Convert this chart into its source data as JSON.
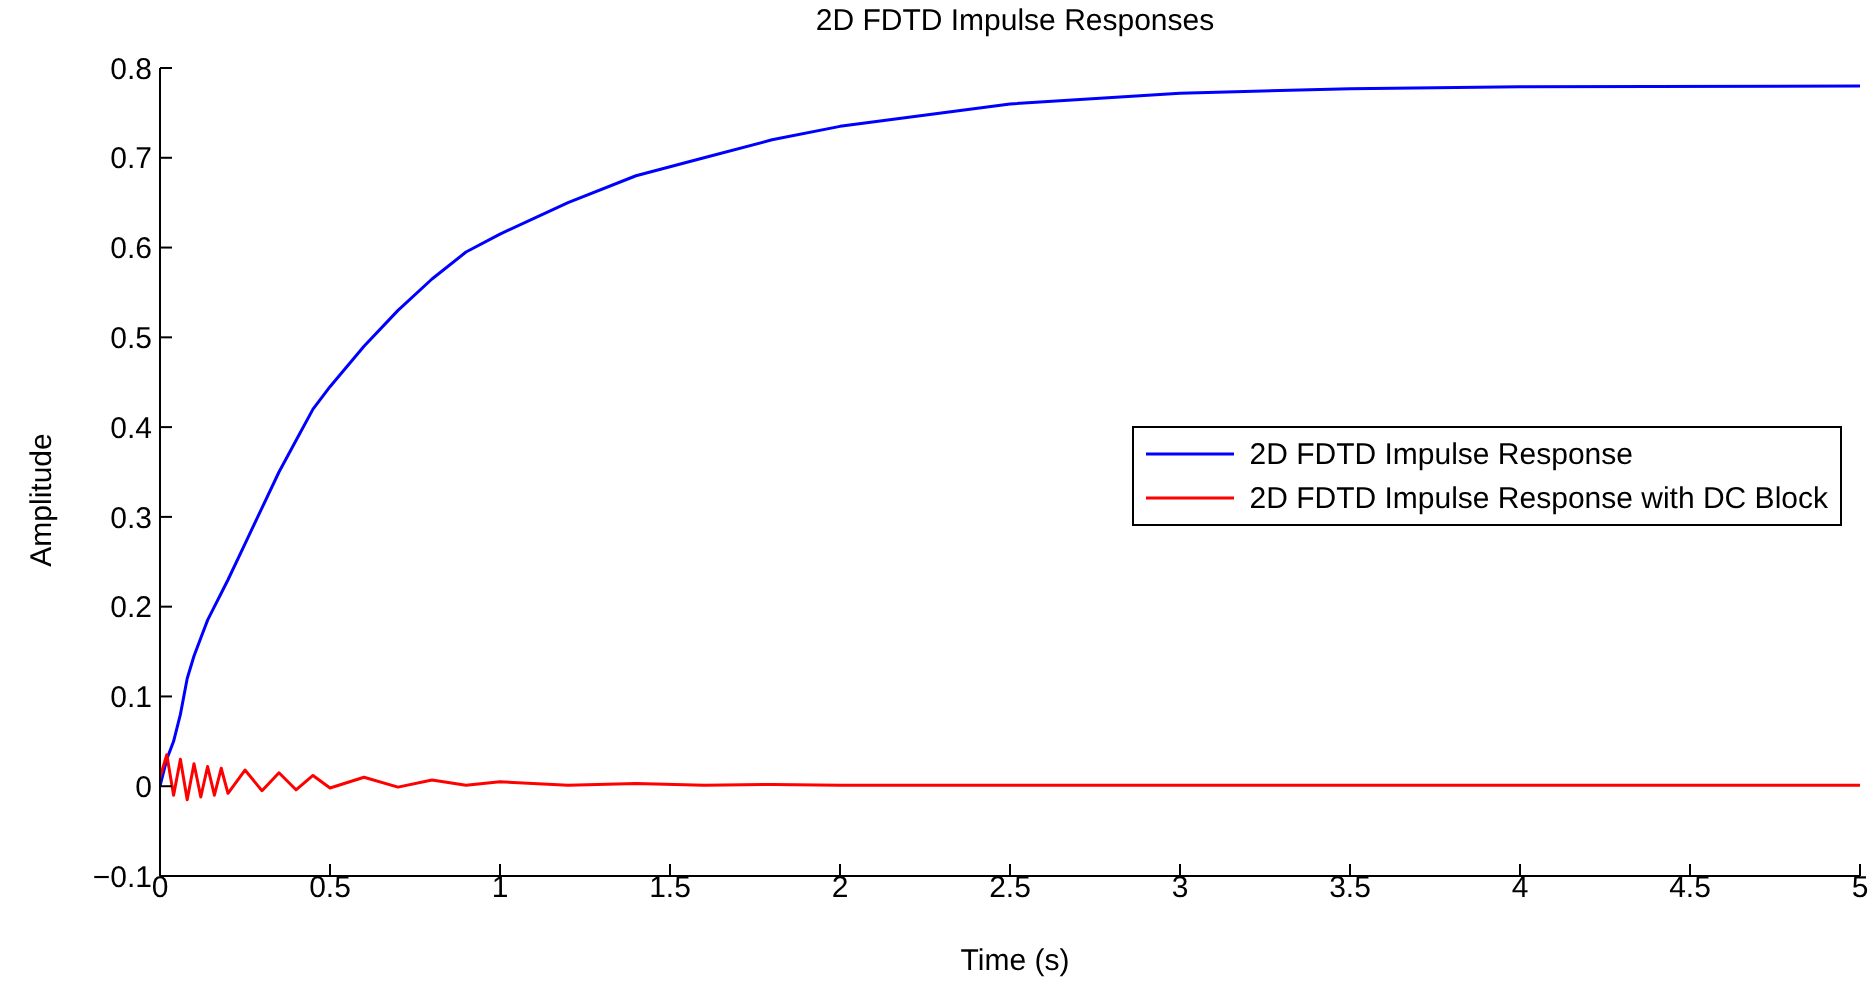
{
  "chart_data": {
    "type": "line",
    "title": "2D FDTD Impulse Responses",
    "xlabel": "Time (s)",
    "ylabel": "Amplitude",
    "x": [
      0,
      0.02,
      0.04,
      0.06,
      0.08,
      0.1,
      0.12,
      0.14,
      0.16,
      0.18,
      0.2,
      0.25,
      0.3,
      0.35,
      0.4,
      0.45,
      0.5,
      0.6,
      0.7,
      0.8,
      0.9,
      1,
      1.2,
      1.4,
      1.6,
      1.8,
      2,
      2.5,
      3,
      3.5,
      4,
      5
    ],
    "series": [
      {
        "name": "2D FDTD Impulse Response",
        "color": "#0000ff",
        "values": [
          0,
          0.03,
          0.05,
          0.08,
          0.12,
          0.145,
          0.165,
          0.185,
          0.2,
          0.215,
          0.23,
          0.27,
          0.31,
          0.35,
          0.385,
          0.42,
          0.445,
          0.49,
          0.53,
          0.565,
          0.595,
          0.615,
          0.65,
          0.68,
          0.7,
          0.72,
          0.735,
          0.76,
          0.772,
          0.777,
          0.779,
          0.78
        ]
      },
      {
        "name": "2D FDTD Impulse Response with DC Block",
        "color": "#ff0000",
        "values": [
          0.01,
          0.035,
          -0.01,
          0.03,
          -0.015,
          0.025,
          -0.012,
          0.022,
          -0.01,
          0.02,
          -0.008,
          0.018,
          -0.005,
          0.015,
          -0.004,
          0.012,
          -0.002,
          0.01,
          -0.001,
          0.007,
          0.001,
          0.005,
          0.001,
          0.003,
          0.001,
          0.002,
          0.001,
          0.001,
          0.001,
          0.001,
          0.001,
          0.001
        ]
      }
    ],
    "xlim": [
      0,
      5
    ],
    "xticks": [
      0,
      0.5,
      1,
      1.5,
      2,
      2.5,
      3,
      3.5,
      4,
      4.5,
      5
    ],
    "ylim": [
      -0.1,
      0.8
    ],
    "yticks": [
      {
        "value": -0.1,
        "label": "−0.1"
      },
      0,
      0.1,
      0.2,
      0.3,
      0.4,
      0.5,
      0.6,
      0.7,
      0.8
    ],
    "grid": false,
    "legend": "right",
    "marker": "none",
    "line_style": "solid"
  }
}
